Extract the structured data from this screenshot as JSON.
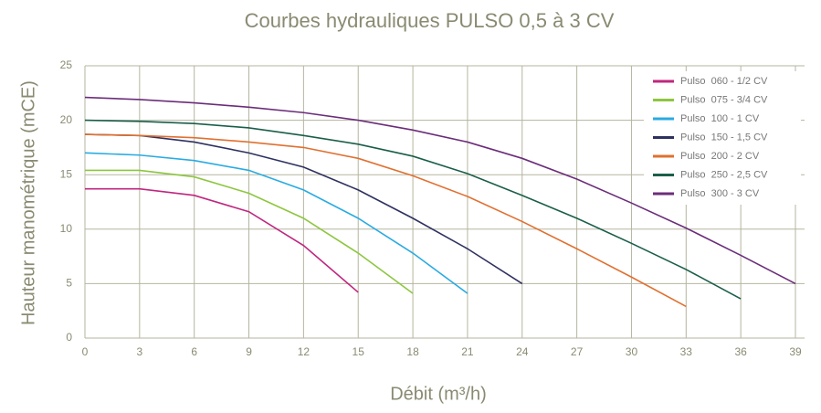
{
  "chart_data": {
    "type": "line",
    "title": "Courbes hydrauliques PULSO 0,5 à 3 CV",
    "x_label": "Débit (m³/h)",
    "y_label": "Hauteur manométrique (mCE)",
    "x": [
      0,
      3,
      6,
      9,
      12,
      15,
      18,
      21,
      24,
      27,
      30,
      33,
      36,
      39
    ],
    "series": [
      {
        "name": "Pulso  060 - 1/2 CV",
        "color": "#c0267f",
        "values": [
          13.7,
          13.7,
          13.1,
          11.6,
          8.5,
          4.2,
          null,
          null,
          null,
          null,
          null,
          null,
          null,
          null
        ]
      },
      {
        "name": "Pulso  075 - 3/4 CV",
        "color": "#8dc63f",
        "values": [
          15.4,
          15.4,
          14.8,
          13.3,
          11.0,
          7.8,
          4.1,
          null,
          null,
          null,
          null,
          null,
          null,
          null
        ]
      },
      {
        "name": "Pulso  100 - 1 CV",
        "color": "#29abe2",
        "values": [
          17.0,
          16.8,
          16.3,
          15.4,
          13.6,
          11.0,
          7.8,
          4.1,
          null,
          null,
          null,
          null,
          null,
          null
        ]
      },
      {
        "name": "Pulso  150 - 1,5 CV",
        "color": "#2e3160",
        "values": [
          18.7,
          18.6,
          18.0,
          17.0,
          15.7,
          13.6,
          11.0,
          8.2,
          5.0,
          null,
          null,
          null,
          null,
          null
        ]
      },
      {
        "name": "Pulso  200 - 2 CV",
        "color": "#e07030",
        "values": [
          18.7,
          18.6,
          18.4,
          18.0,
          17.5,
          16.5,
          14.9,
          13.0,
          10.7,
          8.2,
          5.6,
          2.9,
          null,
          null
        ]
      },
      {
        "name": "Pulso  250 - 2,5 CV",
        "color": "#1a5e4a",
        "values": [
          20.0,
          19.9,
          19.7,
          19.3,
          18.6,
          17.8,
          16.7,
          15.1,
          13.1,
          11.0,
          8.7,
          6.3,
          3.6,
          null
        ]
      },
      {
        "name": "Pulso  300 - 3 CV",
        "color": "#6b2d7a",
        "values": [
          22.1,
          21.9,
          21.6,
          21.2,
          20.7,
          20.0,
          19.1,
          18.0,
          16.5,
          14.6,
          12.4,
          10.1,
          7.6,
          5.0
        ]
      }
    ],
    "xlim": [
      0,
      39
    ],
    "ylim": [
      0,
      25
    ],
    "xticks": [
      0,
      3,
      6,
      9,
      12,
      15,
      18,
      21,
      24,
      27,
      30,
      33,
      36,
      39
    ],
    "yticks": [
      0,
      5,
      10,
      15,
      20,
      25
    ],
    "grid": true
  }
}
